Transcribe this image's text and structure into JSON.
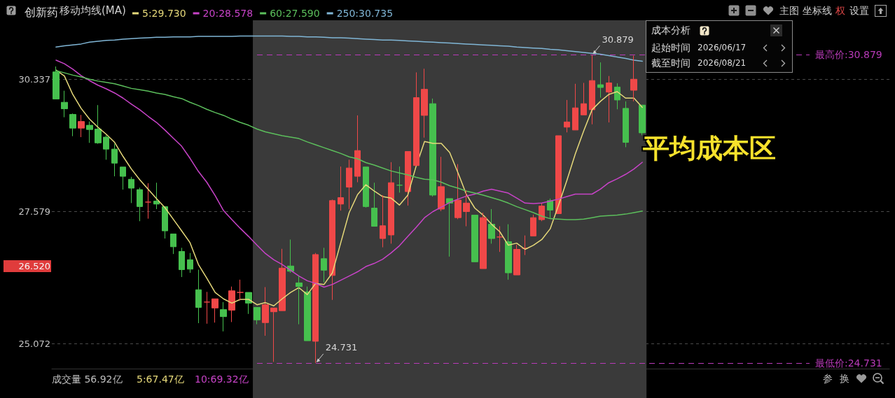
{
  "chart_data": {
    "type": "candlestick",
    "title": "创新药",
    "legend_title": "移动均线(MA)",
    "categories": [
      null,
      null,
      null,
      null,
      null,
      null,
      null,
      null,
      null,
      null,
      null,
      null,
      null,
      null,
      null,
      null,
      null,
      null,
      null,
      null,
      null,
      null,
      null,
      null,
      null,
      null,
      null,
      null,
      null,
      null,
      null,
      null,
      null,
      null,
      null,
      null,
      null,
      null,
      null,
      null,
      null,
      null,
      null,
      null,
      null,
      null,
      null,
      null,
      null,
      null,
      null,
      null,
      null,
      null,
      null,
      null,
      null,
      null,
      null,
      null,
      null,
      null,
      null,
      null,
      null,
      null,
      null,
      null,
      null,
      null,
      null
    ],
    "ohlc": [
      [
        30.5,
        30.62,
        29.91,
        29.91
      ],
      [
        29.84,
        30.09,
        29.52,
        29.7
      ],
      [
        29.58,
        29.6,
        29.12,
        29.29
      ],
      [
        29.29,
        29.57,
        29.1,
        29.43
      ],
      [
        29.35,
        29.43,
        28.98,
        29.26
      ],
      [
        29.27,
        29.78,
        28.96,
        28.98
      ],
      [
        29.1,
        29.14,
        28.63,
        28.85
      ],
      [
        28.85,
        28.96,
        28.29,
        28.56
      ],
      [
        28.48,
        28.48,
        28.02,
        28.29
      ],
      [
        28.23,
        28.28,
        27.75,
        28.05
      ],
      [
        28.02,
        28.06,
        27.39,
        27.68
      ],
      [
        27.77,
        28.15,
        27.44,
        27.77
      ],
      [
        27.79,
        28.16,
        27.63,
        27.73
      ],
      [
        27.68,
        27.68,
        27.05,
        27.2
      ],
      [
        27.14,
        27.14,
        26.75,
        26.89
      ],
      [
        26.8,
        26.87,
        26.31,
        26.45
      ],
      [
        26.64,
        26.77,
        26.39,
        26.46
      ],
      [
        26.07,
        26.45,
        25.45,
        25.74
      ],
      [
        25.84,
        26.03,
        25.44,
        25.84
      ],
      [
        25.73,
        25.9,
        25.46,
        25.9
      ],
      [
        25.7,
        25.84,
        25.3,
        25.57
      ],
      [
        25.69,
        26.13,
        25.47,
        26.05
      ],
      [
        26.02,
        26.26,
        25.87,
        26.02
      ],
      [
        26.02,
        26.02,
        25.62,
        25.82
      ],
      [
        25.74,
        25.74,
        25.43,
        25.51
      ],
      [
        25.46,
        26.12,
        25.22,
        25.79
      ],
      [
        25.66,
        25.73,
        24.75,
        25.73
      ],
      [
        25.68,
        26.85,
        25.68,
        26.48
      ],
      [
        26.52,
        27.03,
        26.39,
        26.42
      ],
      [
        26.2,
        26.33,
        25.43,
        26.13
      ],
      [
        26.03,
        26.13,
        25.13,
        25.13
      ],
      [
        25.12,
        26.77,
        24.731,
        26.74
      ],
      [
        26.66,
        26.87,
        26.21,
        26.44
      ],
      [
        26.34,
        27.82,
        25.88,
        27.8
      ],
      [
        27.73,
        28.49,
        27.6,
        27.86
      ],
      [
        28.07,
        28.63,
        27.63,
        28.46
      ],
      [
        28.29,
        29.56,
        28.17,
        28.82
      ],
      [
        28.48,
        28.48,
        27.66,
        27.68
      ],
      [
        27.65,
        28.16,
        27.29,
        27.29
      ],
      [
        27.05,
        27.91,
        26.88,
        27.3
      ],
      [
        27.12,
        28.58,
        26.95,
        28.16
      ],
      [
        28.11,
        28.49,
        27.96,
        28.11
      ],
      [
        27.98,
        28.8,
        27.7,
        28.8
      ],
      [
        28.51,
        30.49,
        28.51,
        29.94
      ],
      [
        29.56,
        30.57,
        29.09,
        30.12
      ],
      [
        29.81,
        29.92,
        27.88,
        27.91
      ],
      [
        27.63,
        28.69,
        27.59,
        28.08
      ],
      [
        27.84,
        27.84,
        26.7,
        27.75
      ],
      [
        27.46,
        28.54,
        27.43,
        27.81
      ],
      [
        27.58,
        28.01,
        27.29,
        27.75
      ],
      [
        27.51,
        27.51,
        26.6,
        26.6
      ],
      [
        26.47,
        27.56,
        26.47,
        27.46
      ],
      [
        27.33,
        27.63,
        26.95,
        27.05
      ],
      [
        27.08,
        27.29,
        26.79,
        27.08
      ],
      [
        26.99,
        27.33,
        26.26,
        26.39
      ],
      [
        26.35,
        26.93,
        26.35,
        26.84
      ],
      [
        26.86,
        27.11,
        26.73,
        26.86
      ],
      [
        27.1,
        27.52,
        27.1,
        27.46
      ],
      [
        27.42,
        27.75,
        27.39,
        27.69
      ],
      [
        27.8,
        27.84,
        27.45,
        27.61
      ],
      [
        27.54,
        29.13,
        27.54,
        29.13
      ],
      [
        29.31,
        29.89,
        29.2,
        29.42
      ],
      [
        29.25,
        30.24,
        29.25,
        29.72
      ],
      [
        29.57,
        30.26,
        29.57,
        29.81
      ],
      [
        29.68,
        30.879,
        29.37,
        30.31
      ],
      [
        30.22,
        30.71,
        29.94,
        30.16
      ],
      [
        30.06,
        30.41,
        29.41,
        30.26
      ],
      [
        30.17,
        30.25,
        29.69,
        29.89
      ],
      [
        29.71,
        29.86,
        28.89,
        28.99
      ],
      [
        30.1,
        30.86,
        29.86,
        30.34
      ],
      [
        29.78,
        29.78,
        29.14,
        29.19
      ]
    ],
    "colors": [
      "#46c04e",
      "#46c04e",
      "#46c04e",
      "#f04848",
      "#46c04e",
      "#46c04e",
      "#46c04e",
      "#46c04e",
      "#46c04e",
      "#46c04e",
      "#46c04e",
      "#f04848",
      "#46c04e",
      "#46c04e",
      "#46c04e",
      "#46c04e",
      "#46c04e",
      "#46c04e",
      "#f04848",
      "#f04848",
      "#46c04e",
      "#f04848",
      "#f04848",
      "#46c04e",
      "#46c04e",
      "#f04848",
      "#f04848",
      "#f04848",
      "#46c04e",
      "#46c04e",
      "#46c04e",
      "#f04848",
      "#46c04e",
      "#f04848",
      "#f04848",
      "#f04848",
      "#f04848",
      "#46c04e",
      "#46c04e",
      "#f04848",
      "#f04848",
      "#46c04e",
      "#f04848",
      "#f04848",
      "#f04848",
      "#46c04e",
      "#f04848",
      "#46c04e",
      "#f04848",
      "#f04848",
      "#46c04e",
      "#f04848",
      "#46c04e",
      "#f04848",
      "#46c04e",
      "#f04848",
      "#f04848",
      "#f04848",
      "#f04848",
      "#46c04e",
      "#f04848",
      "#f04848",
      "#f04848",
      "#f04848",
      "#f04848",
      "#46c04e",
      "#f04848",
      "#46c04e",
      "#46c04e",
      "#f04848",
      "#46c04e"
    ],
    "series": [
      {
        "type": "line",
        "name": "5:29.730",
        "color": "#e6d97a",
        "values": [
          30.54,
          30.41,
          30.01,
          29.71,
          29.48,
          29.31,
          29.16,
          28.99,
          28.7,
          28.44,
          28.22,
          28.03,
          27.84,
          27.66,
          27.43,
          27.2,
          26.97,
          26.55,
          26.29,
          26.02,
          25.9,
          25.82,
          25.89,
          25.89,
          25.79,
          25.83,
          25.77,
          25.9,
          26.02,
          26.11,
          25.98,
          26.19,
          26.17,
          26.39,
          26.97,
          27.56,
          27.92,
          28.12,
          27.99,
          27.88,
          27.85,
          27.71,
          27.91,
          28.5,
          29.01,
          28.97,
          28.97,
          28.78,
          28.36,
          27.92,
          27.65,
          27.51,
          27.33,
          27.18,
          26.92,
          26.96,
          26.84,
          26.92,
          27.03,
          27.24,
          27.71,
          28.21,
          28.75,
          29.23,
          29.68,
          29.86,
          30.01,
          30.07,
          29.93,
          29.93,
          29.73
        ]
      },
      {
        "type": "line",
        "name": "20:28.578",
        "color": "#c843c8",
        "values": [
          30.76,
          30.68,
          30.56,
          30.42,
          30.31,
          30.21,
          30.13,
          30.04,
          29.93,
          29.8,
          29.68,
          29.54,
          29.41,
          29.25,
          29.08,
          28.91,
          28.66,
          28.39,
          28.17,
          27.9,
          27.6,
          27.42,
          27.25,
          27.09,
          26.92,
          26.76,
          26.64,
          26.55,
          26.44,
          26.33,
          26.24,
          26.19,
          26.12,
          26.17,
          26.25,
          26.33,
          26.41,
          26.51,
          26.57,
          26.65,
          26.77,
          26.91,
          27.09,
          27.27,
          27.46,
          27.58,
          27.67,
          27.76,
          27.83,
          27.89,
          27.93,
          27.99,
          28.03,
          27.99,
          27.95,
          27.85,
          27.75,
          27.74,
          27.75,
          27.79,
          27.83,
          27.88,
          27.93,
          27.93,
          27.93,
          28.03,
          28.16,
          28.24,
          28.33,
          28.44,
          28.578
        ]
      },
      {
        "type": "line",
        "name": "60:27.590",
        "color": "#5cbf5c",
        "values": [
          30.53,
          30.48,
          30.43,
          30.39,
          30.34,
          30.3,
          30.27,
          30.24,
          30.19,
          30.14,
          30.11,
          30.08,
          30.04,
          30.01,
          29.96,
          29.92,
          29.84,
          29.77,
          29.69,
          29.62,
          29.56,
          29.48,
          29.41,
          29.35,
          29.27,
          29.21,
          29.17,
          29.13,
          29.1,
          29.07,
          29.0,
          28.94,
          28.88,
          28.82,
          28.76,
          28.69,
          28.65,
          28.57,
          28.52,
          28.46,
          28.4,
          28.36,
          28.32,
          28.27,
          28.23,
          28.22,
          28.17,
          28.1,
          28.05,
          27.99,
          27.95,
          27.91,
          27.86,
          27.81,
          27.75,
          27.68,
          27.62,
          27.56,
          27.49,
          27.44,
          27.43,
          27.42,
          27.42,
          27.43,
          27.46,
          27.49,
          27.5,
          27.51,
          27.53,
          27.56,
          27.59
        ]
      },
      {
        "type": "line",
        "name": "250:30.735",
        "color": "#80b6d6",
        "values": [
          31.05,
          31.08,
          31.1,
          31.12,
          31.16,
          31.18,
          31.2,
          31.21,
          31.23,
          31.24,
          31.25,
          31.26,
          31.27,
          31.27,
          31.28,
          31.28,
          31.28,
          31.29,
          31.29,
          31.29,
          31.29,
          31.29,
          31.3,
          31.3,
          31.3,
          31.3,
          31.3,
          31.3,
          31.29,
          31.29,
          31.28,
          31.28,
          31.27,
          31.26,
          31.26,
          31.25,
          31.24,
          31.23,
          31.22,
          31.21,
          31.21,
          31.2,
          31.19,
          31.18,
          31.17,
          31.16,
          31.15,
          31.14,
          31.13,
          31.12,
          31.11,
          31.1,
          31.09,
          31.08,
          31.07,
          31.05,
          31.04,
          31.03,
          31.02,
          31.0,
          30.99,
          30.97,
          30.95,
          30.93,
          30.91,
          30.89,
          30.86,
          30.83,
          30.8,
          30.76,
          30.735
        ]
      }
    ],
    "ylim": [
      24.63,
      31.64
    ],
    "yticks": [
      25.072,
      27.579,
      30.337
    ],
    "log": true,
    "grid": "y",
    "legend": "top left",
    "marker": "none",
    "tick_labels": "y",
    "ref_lines": [
      {
        "axis": "y",
        "value": 30.879,
        "label": "最高价:30.879",
        "color": "#b83ab8",
        "line_style": "dashed"
      },
      {
        "axis": "y",
        "value": 24.731,
        "label": "最低价:24.731",
        "color": "#b83ab8",
        "line_style": "dashed"
      }
    ],
    "annotations": [
      {
        "text": "30.879",
        "y": 30.879
      },
      {
        "text": "24.731",
        "y": 24.731
      },
      "26.520",
      "成交量 56.92亿",
      "5:67.47亿",
      "10:69.32亿",
      "主图",
      "坐标线",
      "权",
      "设置",
      "参",
      "换",
      "成本分析",
      "起始时间",
      "2026/06/17",
      "截至时间",
      "2026/08/21",
      "平均成本区"
    ]
  }
}
